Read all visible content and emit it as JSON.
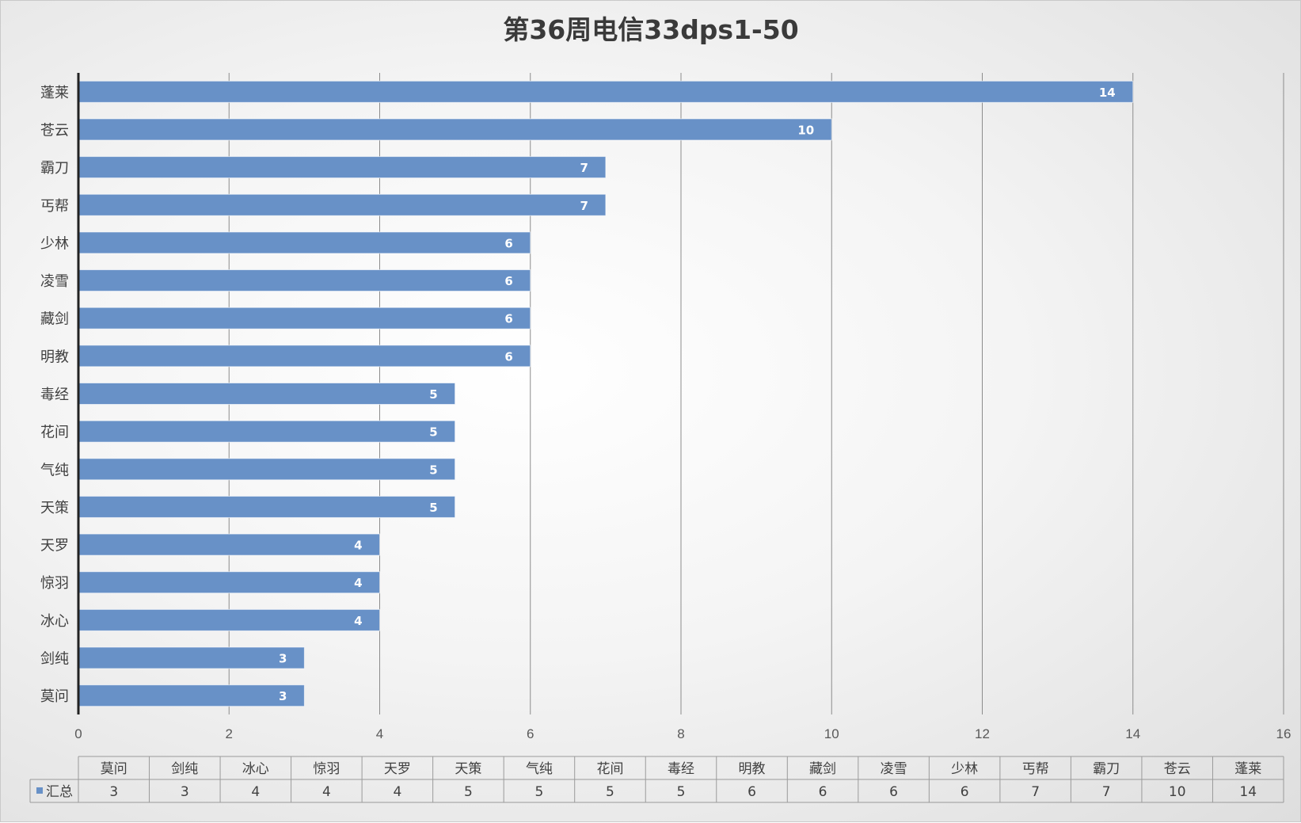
{
  "chart_data": {
    "type": "bar",
    "orientation": "horizontal",
    "title": "第36周电信33dps1-50",
    "categories": [
      "莫问",
      "剑纯",
      "冰心",
      "惊羽",
      "天罗",
      "天策",
      "气纯",
      "花间",
      "毒经",
      "明教",
      "藏剑",
      "凌雪",
      "少林",
      "丐帮",
      "霸刀",
      "苍云",
      "蓬莱"
    ],
    "series": [
      {
        "name": "汇总",
        "values": [
          3,
          3,
          4,
          4,
          4,
          5,
          5,
          5,
          5,
          6,
          6,
          6,
          6,
          7,
          7,
          10,
          14
        ]
      }
    ],
    "xlim": [
      0,
      16
    ],
    "xticks": [
      0,
      2,
      4,
      6,
      8,
      10,
      12,
      14,
      16
    ],
    "grid": "vertical",
    "data_labels": true,
    "legend": "data-table",
    "bar_color": "#6891c7"
  }
}
